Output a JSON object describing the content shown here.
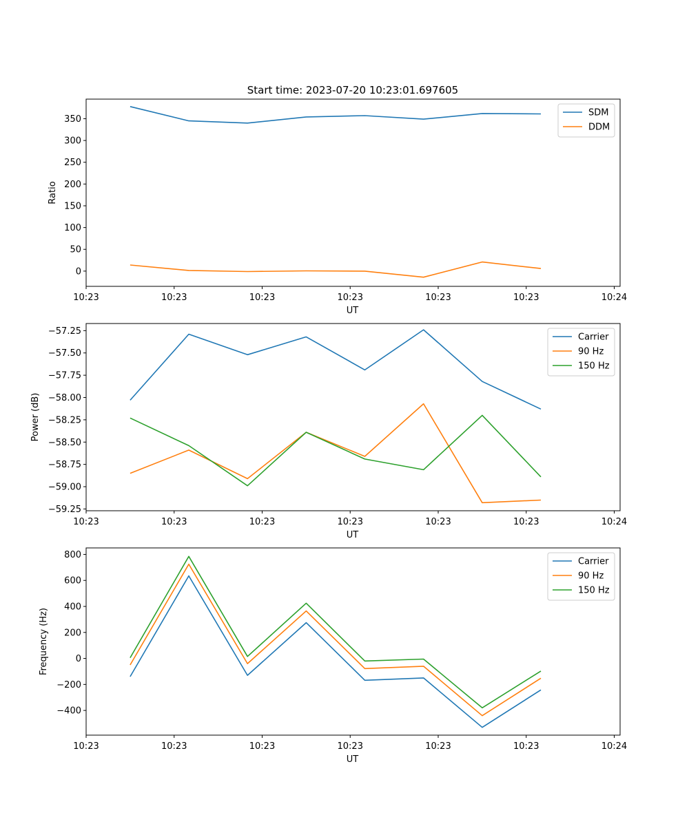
{
  "figure_title": "Start time: 2023-07-20 10:23:01.697605",
  "chart_data": [
    {
      "type": "line",
      "title": "Start time: 2023-07-20 10:23:01.697605",
      "xlabel": "UT",
      "ylabel": "Ratio",
      "xlim": [
        0,
        9.1
      ],
      "x": [
        0.75,
        1.75,
        2.75,
        3.75,
        4.75,
        5.75,
        6.75,
        7.75
      ],
      "x_ticks": [
        0,
        1.5,
        3,
        4.5,
        6,
        7.5,
        9
      ],
      "x_tick_labels": [
        "10:23",
        "10:23",
        "10:23",
        "10:23",
        "10:23",
        "10:23",
        "10:24"
      ],
      "ylim": [
        -35,
        395
      ],
      "y_ticks": [
        0,
        50,
        100,
        150,
        200,
        250,
        300,
        350
      ],
      "y_tick_labels": [
        "0",
        "50",
        "100",
        "150",
        "200",
        "250",
        "300",
        "350"
      ],
      "legend_position": "top-right",
      "series": [
        {
          "name": "SDM",
          "color": "#1f77b4",
          "values": [
            378,
            345,
            340,
            354,
            357,
            349,
            362,
            361
          ]
        },
        {
          "name": "DDM",
          "color": "#ff7f0e",
          "values": [
            14,
            1.5,
            -1,
            0.5,
            0,
            -14,
            21,
            6
          ]
        }
      ]
    },
    {
      "type": "line",
      "xlabel": "UT",
      "ylabel": "Power (dB)",
      "xlim": [
        0,
        9.1
      ],
      "x": [
        0.75,
        1.75,
        2.75,
        3.75,
        4.75,
        5.75,
        6.75,
        7.75
      ],
      "x_ticks": [
        0,
        1.5,
        3,
        4.5,
        6,
        7.5,
        9
      ],
      "x_tick_labels": [
        "10:23",
        "10:23",
        "10:23",
        "10:23",
        "10:23",
        "10:23",
        "10:24"
      ],
      "ylim": [
        -59.27,
        -57.17
      ],
      "y_ticks": [
        -59.25,
        -59.0,
        -58.75,
        -58.5,
        -58.25,
        -58.0,
        -57.75,
        -57.5,
        -57.25
      ],
      "y_tick_labels": [
        "−59.25",
        "−59.00",
        "−58.75",
        "−58.50",
        "−58.25",
        "−58.00",
        "−57.75",
        "−57.50",
        "−57.25"
      ],
      "legend_position": "top-right",
      "series": [
        {
          "name": "Carrier",
          "color": "#1f77b4",
          "values": [
            -58.03,
            -57.29,
            -57.52,
            -57.32,
            -57.69,
            -57.24,
            -57.82,
            -58.13
          ]
        },
        {
          "name": "90 Hz",
          "color": "#ff7f0e",
          "values": [
            -58.85,
            -58.59,
            -58.91,
            -58.39,
            -58.66,
            -58.07,
            -59.18,
            -59.15
          ]
        },
        {
          "name": "150 Hz",
          "color": "#2ca02c",
          "values": [
            -58.23,
            -58.54,
            -58.99,
            -58.39,
            -58.69,
            -58.81,
            -58.2,
            -58.89
          ]
        }
      ]
    },
    {
      "type": "line",
      "xlabel": "UT",
      "ylabel": "Frequency (Hz)",
      "xlim": [
        0,
        9.1
      ],
      "x": [
        0.75,
        1.75,
        2.75,
        3.75,
        4.75,
        5.75,
        6.75,
        7.75
      ],
      "x_ticks": [
        0,
        1.5,
        3,
        4.5,
        6,
        7.5,
        9
      ],
      "x_tick_labels": [
        "10:23",
        "10:23",
        "10:23",
        "10:23",
        "10:23",
        "10:23",
        "10:24"
      ],
      "ylim": [
        -590,
        850
      ],
      "y_ticks": [
        -400,
        -200,
        0,
        200,
        400,
        600,
        800
      ],
      "y_tick_labels": [
        "−400",
        "−200",
        "0",
        "200",
        "400",
        "600",
        "800"
      ],
      "legend_position": "top-right",
      "series": [
        {
          "name": "Carrier",
          "color": "#1f77b4",
          "values": [
            -140,
            635,
            -130,
            275,
            -168,
            -150,
            -530,
            -242
          ]
        },
        {
          "name": "90 Hz",
          "color": "#ff7f0e",
          "values": [
            -50,
            725,
            -40,
            365,
            -78,
            -60,
            -440,
            -152
          ]
        },
        {
          "name": "150 Hz",
          "color": "#2ca02c",
          "values": [
            5,
            785,
            15,
            425,
            -20,
            -5,
            -380,
            -97
          ]
        }
      ]
    }
  ]
}
